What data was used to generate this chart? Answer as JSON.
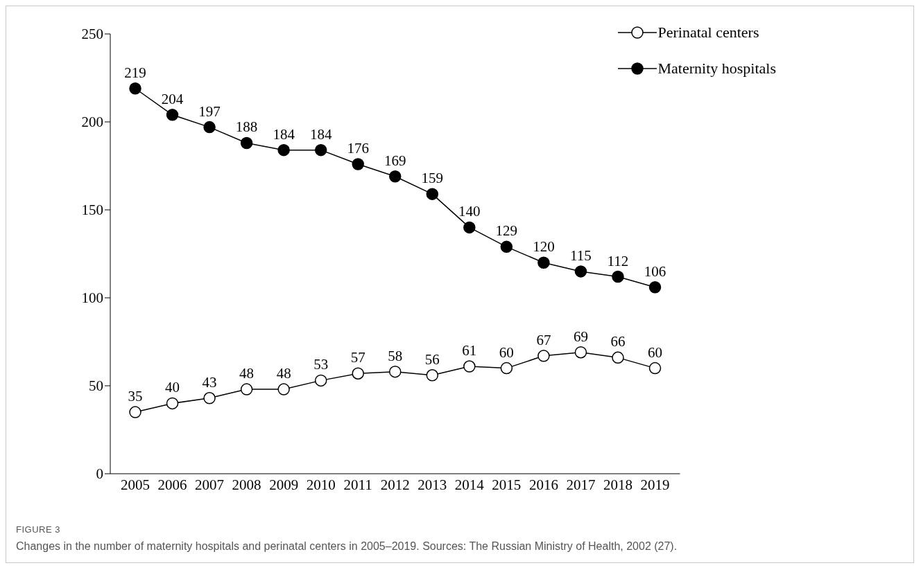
{
  "chart_data": {
    "type": "line",
    "categories": [
      "2005",
      "2006",
      "2007",
      "2008",
      "2009",
      "2010",
      "2011",
      "2012",
      "2013",
      "2014",
      "2015",
      "2016",
      "2017",
      "2018",
      "2019"
    ],
    "series": [
      {
        "name": "Perinatal centers",
        "color": "#000000",
        "values": [
          35,
          40,
          43,
          48,
          48,
          53,
          57,
          58,
          56,
          61,
          60,
          67,
          69,
          66,
          60
        ]
      },
      {
        "name": "Maternity hospitals",
        "color": "#000000",
        "values": [
          219,
          204,
          197,
          188,
          184,
          184,
          176,
          169,
          159,
          140,
          129,
          120,
          115,
          112,
          106
        ]
      }
    ],
    "ylim": [
      0,
      250
    ],
    "yticks": [
      0,
      50,
      100,
      150,
      200,
      250
    ],
    "grid": false,
    "legend": "top right",
    "marker": "circle",
    "line_style": "solid",
    "data_labels": true,
    "annotations": [
      "FIGURE 3",
      "Changes in the number of maternity hospitals and perinatal centers in 2005–2019. Sources: The Russian Ministry of Health, 2002 (27)."
    ]
  }
}
